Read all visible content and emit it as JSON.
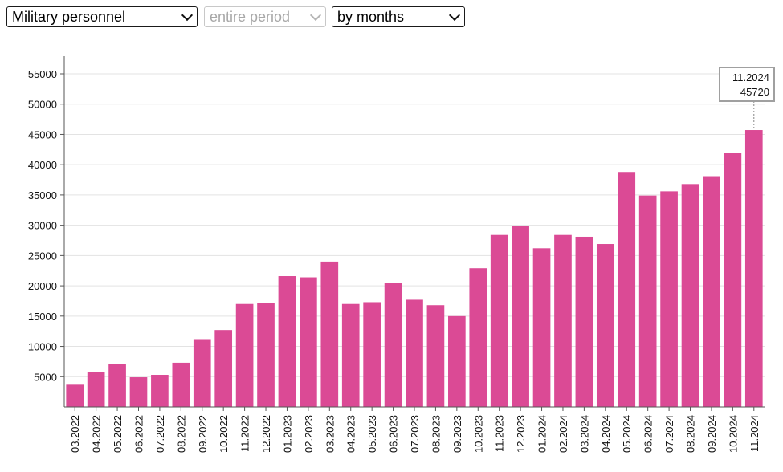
{
  "controls": {
    "category_select": "Military personnel",
    "period_select": "entire period",
    "grouping_select": "by months"
  },
  "colors": {
    "bar": "#db4a95",
    "grid": "#e3e3e3",
    "axis": "#555555",
    "tooltip_border": "#a0a0a0"
  },
  "tooltip": {
    "label": "11.2024",
    "value": "45720"
  },
  "chart_data": {
    "type": "bar",
    "title": "",
    "xlabel": "",
    "ylabel": "",
    "ylim": [
      0,
      55000
    ],
    "yticks": [
      5000,
      10000,
      15000,
      20000,
      25000,
      30000,
      35000,
      40000,
      45000,
      50000,
      55000
    ],
    "grid": true,
    "categories": [
      "03.2022",
      "04.2022",
      "05.2022",
      "06.2022",
      "07.2022",
      "08.2022",
      "09.2022",
      "10.2022",
      "11.2022",
      "12.2022",
      "01.2023",
      "02.2023",
      "03.2023",
      "04.2023",
      "05.2023",
      "06.2023",
      "07.2023",
      "08.2023",
      "09.2023",
      "10.2023",
      "11.2023",
      "12.2023",
      "01.2024",
      "02.2024",
      "03.2024",
      "04.2024",
      "05.2024",
      "06.2024",
      "07.2024",
      "08.2024",
      "09.2024",
      "10.2024",
      "11.2024"
    ],
    "values": [
      3800,
      5700,
      7100,
      4900,
      5300,
      7300,
      11200,
      12700,
      17000,
      17100,
      21600,
      21400,
      24000,
      17000,
      17300,
      20500,
      17700,
      16800,
      15000,
      22900,
      28400,
      29900,
      26200,
      28400,
      28100,
      26900,
      38800,
      34900,
      35600,
      36800,
      38100,
      41900,
      45720
    ]
  }
}
